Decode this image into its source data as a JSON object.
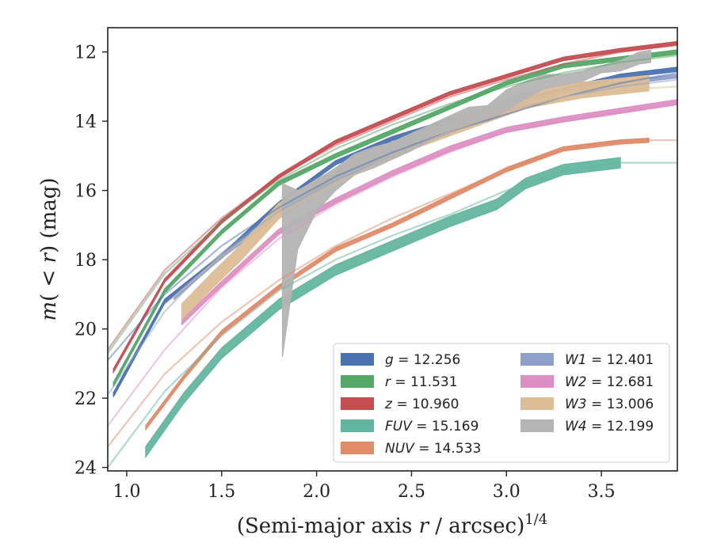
{
  "chart_data": {
    "type": "line",
    "xlabel_main": "(Semi-major axis ",
    "xlabel_var": "r",
    "xlabel_unit": " / arcsec)",
    "xlabel_exp": "1/4",
    "ylabel_m": "m",
    "ylabel_mid": "( < ",
    "ylabel_r": "r",
    "ylabel_end": ") (mag)",
    "xlim": [
      0.9,
      3.9
    ],
    "ylim": [
      24.1,
      11.3
    ],
    "yaxis_inverted": true,
    "x_ticks": [
      1.0,
      1.5,
      2.0,
      2.5,
      3.0,
      3.5
    ],
    "x_tick_labels": [
      "1.0",
      "1.5",
      "2.0",
      "2.5",
      "3.0",
      "3.5"
    ],
    "y_ticks": [
      12,
      14,
      16,
      18,
      20,
      22,
      24
    ],
    "y_tick_labels": [
      "12",
      "14",
      "16",
      "18",
      "20",
      "22",
      "24"
    ],
    "grid": false,
    "legend_position": "lower-right",
    "series": [
      {
        "name": "g",
        "value": "12.256",
        "color": "#4c72b0",
        "band": [
          [
            0.93,
            21.9
          ],
          [
            1.2,
            19.2
          ],
          [
            1.5,
            17.9
          ],
          [
            1.8,
            16.4
          ],
          [
            2.1,
            15.2
          ],
          [
            2.4,
            14.5
          ],
          [
            2.7,
            14.0
          ],
          [
            3.0,
            13.5
          ],
          [
            3.3,
            13.1
          ],
          [
            3.6,
            12.7
          ],
          [
            3.9,
            12.5
          ]
        ],
        "band_width": 0.12,
        "model": [
          [
            0.9,
            20.9
          ],
          [
            1.2,
            19.0
          ],
          [
            1.5,
            17.6
          ],
          [
            1.8,
            16.5
          ],
          [
            2.1,
            15.6
          ],
          [
            2.4,
            14.9
          ],
          [
            2.7,
            14.3
          ],
          [
            3.0,
            13.8
          ],
          [
            3.3,
            13.3
          ],
          [
            3.6,
            12.9
          ],
          [
            3.9,
            12.6
          ]
        ]
      },
      {
        "name": "r",
        "value": "11.531",
        "color": "#55a868",
        "band": [
          [
            0.93,
            21.6
          ],
          [
            1.2,
            18.9
          ],
          [
            1.5,
            17.2
          ],
          [
            1.8,
            15.8
          ],
          [
            2.1,
            15.0
          ],
          [
            2.4,
            14.3
          ],
          [
            2.7,
            13.6
          ],
          [
            3.0,
            12.9
          ],
          [
            3.3,
            12.4
          ],
          [
            3.6,
            12.2
          ],
          [
            3.9,
            12.0
          ]
        ],
        "band_width": 0.12,
        "model": [
          [
            0.9,
            20.7
          ],
          [
            1.2,
            18.4
          ],
          [
            1.5,
            16.9
          ],
          [
            1.8,
            15.7
          ],
          [
            2.1,
            14.8
          ],
          [
            2.4,
            14.1
          ],
          [
            2.7,
            13.5
          ],
          [
            3.0,
            13.0
          ],
          [
            3.3,
            12.6
          ],
          [
            3.6,
            12.3
          ],
          [
            3.9,
            12.1
          ]
        ]
      },
      {
        "name": "z",
        "value": "10.960",
        "color": "#c44e52",
        "band": [
          [
            0.93,
            21.2
          ],
          [
            1.2,
            18.6
          ],
          [
            1.5,
            16.9
          ],
          [
            1.8,
            15.6
          ],
          [
            2.1,
            14.6
          ],
          [
            2.4,
            13.9
          ],
          [
            2.7,
            13.2
          ],
          [
            3.0,
            12.7
          ],
          [
            3.3,
            12.2
          ],
          [
            3.6,
            11.95
          ],
          [
            3.9,
            11.75
          ]
        ],
        "band_width": 0.1,
        "model": [
          [
            0.9,
            20.6
          ],
          [
            1.2,
            18.3
          ],
          [
            1.5,
            16.8
          ],
          [
            1.8,
            15.6
          ],
          [
            2.1,
            14.7
          ],
          [
            2.4,
            14.0
          ],
          [
            2.7,
            13.3
          ],
          [
            3.0,
            12.8
          ],
          [
            3.3,
            12.35
          ],
          [
            3.6,
            12.0
          ],
          [
            3.9,
            11.8
          ]
        ]
      },
      {
        "name": "FUV",
        "value": "15.169",
        "color": "#64b5a0",
        "band": [
          [
            1.1,
            23.55
          ],
          [
            1.3,
            22.0
          ],
          [
            1.5,
            20.7
          ],
          [
            1.8,
            19.3
          ],
          [
            2.1,
            18.3
          ],
          [
            2.4,
            17.6
          ],
          [
            2.7,
            16.9
          ],
          [
            2.95,
            16.4
          ],
          [
            3.1,
            15.8
          ],
          [
            3.3,
            15.4
          ],
          [
            3.6,
            15.2
          ]
        ],
        "band_width": 0.3,
        "model": [
          [
            0.9,
            24.0
          ],
          [
            1.2,
            21.8
          ],
          [
            1.5,
            20.2
          ],
          [
            1.8,
            18.9
          ],
          [
            2.1,
            18.0
          ],
          [
            2.4,
            17.3
          ],
          [
            2.7,
            16.7
          ],
          [
            3.0,
            16.0
          ],
          [
            3.3,
            15.45
          ],
          [
            3.6,
            15.2
          ],
          [
            3.9,
            15.2
          ]
        ]
      },
      {
        "name": "NUV",
        "value": "14.533",
        "color": "#e08b6a",
        "band": [
          [
            1.1,
            22.85
          ],
          [
            1.3,
            21.4
          ],
          [
            1.5,
            20.1
          ],
          [
            1.8,
            18.8
          ],
          [
            2.1,
            17.7
          ],
          [
            2.4,
            17.0
          ],
          [
            2.7,
            16.2
          ],
          [
            3.0,
            15.4
          ],
          [
            3.3,
            14.8
          ],
          [
            3.6,
            14.6
          ],
          [
            3.75,
            14.55
          ]
        ],
        "band_width": 0.12,
        "model": [
          [
            0.9,
            23.4
          ],
          [
            1.2,
            21.3
          ],
          [
            1.5,
            19.8
          ],
          [
            1.8,
            18.6
          ],
          [
            2.1,
            17.6
          ],
          [
            2.4,
            16.8
          ],
          [
            2.7,
            16.1
          ],
          [
            3.0,
            15.4
          ],
          [
            3.3,
            14.8
          ],
          [
            3.6,
            14.55
          ],
          [
            3.9,
            14.55
          ]
        ]
      },
      {
        "name": "W1",
        "value": "12.401",
        "color": "#8e9fc8",
        "band": [
          [
            1.25,
            19.1
          ],
          [
            1.5,
            17.9
          ],
          [
            1.8,
            16.7
          ],
          [
            2.1,
            15.7
          ],
          [
            2.4,
            15.0
          ],
          [
            2.7,
            14.3
          ],
          [
            3.0,
            13.6
          ],
          [
            3.3,
            13.15
          ],
          [
            3.6,
            12.9
          ],
          [
            3.9,
            12.7
          ]
        ],
        "band_width": 0.1,
        "model": [
          [
            0.9,
            21.9
          ],
          [
            1.2,
            19.5
          ],
          [
            1.5,
            17.8
          ],
          [
            1.8,
            16.6
          ],
          [
            2.1,
            15.7
          ],
          [
            2.4,
            15.0
          ],
          [
            2.7,
            14.3
          ],
          [
            3.0,
            13.7
          ],
          [
            3.3,
            13.3
          ],
          [
            3.6,
            13.0
          ],
          [
            3.9,
            12.8
          ]
        ]
      },
      {
        "name": "W2",
        "value": "12.681",
        "color": "#dd8fc3",
        "band": [
          [
            1.29,
            19.8
          ],
          [
            1.5,
            18.7
          ],
          [
            1.8,
            17.2
          ],
          [
            2.1,
            16.3
          ],
          [
            2.4,
            15.5
          ],
          [
            2.7,
            14.8
          ],
          [
            3.0,
            14.25
          ],
          [
            3.3,
            13.95
          ],
          [
            3.6,
            13.7
          ],
          [
            3.9,
            13.45
          ]
        ],
        "band_width": 0.15,
        "model": [
          [
            0.9,
            22.8
          ],
          [
            1.2,
            20.6
          ],
          [
            1.5,
            18.8
          ],
          [
            1.8,
            17.4
          ],
          [
            2.1,
            16.4
          ],
          [
            2.4,
            15.6
          ],
          [
            2.7,
            14.9
          ],
          [
            3.0,
            14.3
          ],
          [
            3.3,
            14.0
          ],
          [
            3.6,
            13.75
          ],
          [
            3.9,
            13.5
          ]
        ]
      },
      {
        "name": "W3",
        "value": "13.006",
        "color": "#dcbd96",
        "band": [
          [
            1.29,
            19.5
          ],
          [
            1.45,
            18.6
          ],
          [
            1.6,
            17.8
          ],
          [
            1.8,
            16.6
          ],
          [
            2.0,
            15.9
          ],
          [
            2.2,
            15.3
          ],
          [
            2.5,
            14.6
          ],
          [
            2.8,
            14.0
          ],
          [
            3.1,
            13.4
          ],
          [
            3.4,
            13.1
          ],
          [
            3.75,
            12.9
          ]
        ],
        "band_width": 0.45,
        "model": [
          [
            1.2,
            19.3
          ],
          [
            1.5,
            17.9
          ],
          [
            1.8,
            16.7
          ],
          [
            2.1,
            15.8
          ],
          [
            2.4,
            15.0
          ],
          [
            2.7,
            14.3
          ],
          [
            3.0,
            13.7
          ],
          [
            3.3,
            13.3
          ],
          [
            3.6,
            13.1
          ],
          [
            3.9,
            13.0
          ]
        ]
      },
      {
        "name": "W4",
        "value": "12.199",
        "color": "#b4b4b4",
        "band_upper": [
          [
            1.82,
            15.8
          ],
          [
            1.9,
            16.0
          ],
          [
            2.0,
            15.7
          ],
          [
            2.1,
            15.35
          ],
          [
            2.2,
            14.95
          ],
          [
            2.3,
            14.75
          ],
          [
            2.4,
            14.6
          ],
          [
            2.5,
            14.35
          ],
          [
            2.6,
            14.1
          ],
          [
            2.7,
            13.85
          ],
          [
            2.8,
            13.6
          ],
          [
            2.9,
            13.55
          ],
          [
            3.0,
            13.1
          ],
          [
            3.1,
            12.85
          ],
          [
            3.2,
            12.65
          ],
          [
            3.3,
            12.65
          ],
          [
            3.4,
            12.55
          ],
          [
            3.5,
            12.4
          ],
          [
            3.6,
            12.25
          ],
          [
            3.7,
            12.0
          ],
          [
            3.76,
            11.95
          ]
        ],
        "band_lower": [
          [
            1.82,
            20.8
          ],
          [
            1.9,
            17.7
          ],
          [
            2.0,
            16.6
          ],
          [
            2.1,
            16.0
          ],
          [
            2.2,
            15.55
          ],
          [
            2.3,
            15.35
          ],
          [
            2.4,
            15.1
          ],
          [
            2.5,
            14.85
          ],
          [
            2.6,
            14.55
          ],
          [
            2.7,
            14.35
          ],
          [
            2.8,
            14.1
          ],
          [
            2.9,
            14.0
          ],
          [
            3.0,
            13.7
          ],
          [
            3.1,
            13.35
          ],
          [
            3.2,
            13.05
          ],
          [
            3.3,
            12.95
          ],
          [
            3.4,
            12.85
          ],
          [
            3.5,
            12.6
          ],
          [
            3.6,
            12.55
          ],
          [
            3.7,
            12.35
          ],
          [
            3.76,
            12.3
          ]
        ],
        "model": []
      }
    ]
  },
  "legend": {
    "col1": [
      {
        "var": "g",
        "eq": " = 12.256",
        "color": "#4c72b0"
      },
      {
        "var": "r",
        "eq": " = 11.531",
        "color": "#55a868"
      },
      {
        "var": "z",
        "eq": " = 10.960",
        "color": "#c44e52"
      },
      {
        "var": "FUV",
        "eq": " = 15.169",
        "color": "#64b5a0"
      },
      {
        "var": "NUV",
        "eq": " = 14.533",
        "color": "#e08b6a"
      }
    ],
    "col2": [
      {
        "var": "W1",
        "eq": " = 12.401",
        "color": "#8e9fc8"
      },
      {
        "var": "W2",
        "eq": " = 12.681",
        "color": "#dd8fc3"
      },
      {
        "var": "W3",
        "eq": " = 13.006",
        "color": "#dcbd96"
      },
      {
        "var": "W4",
        "eq": " = 12.199",
        "color": "#b4b4b4"
      }
    ]
  }
}
